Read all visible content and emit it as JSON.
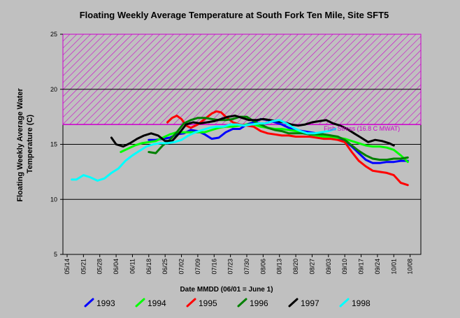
{
  "chart_data": {
    "type": "line",
    "title": "Floating Weekly Average Temperature at South Fork Ten Mile, Site SFT5",
    "xlabel": "Date MMDD (06/01 = June 1)",
    "ylabel": "Floating Weekly Average Water Temperature (C)",
    "ylabel_lines": [
      "Floating Weekly Average Water",
      "Temperature (C)"
    ],
    "ylim": [
      5,
      25
    ],
    "yticks": [
      5,
      10,
      15,
      20,
      25
    ],
    "xlim": [
      0,
      151
    ],
    "xticks": [
      {
        "label": "05/14",
        "x": 0
      },
      {
        "label": "05/21",
        "x": 7
      },
      {
        "label": "05/28",
        "x": 14
      },
      {
        "label": "06/04",
        "x": 21
      },
      {
        "label": "06/11",
        "x": 28
      },
      {
        "label": "06/18",
        "x": 35
      },
      {
        "label": "06/25",
        "x": 42
      },
      {
        "label": "07/02",
        "x": 49
      },
      {
        "label": "07/09",
        "x": 56
      },
      {
        "label": "07/16",
        "x": 63
      },
      {
        "label": "07/23",
        "x": 70
      },
      {
        "label": "07/30",
        "x": 77
      },
      {
        "label": "08/06",
        "x": 84
      },
      {
        "label": "08/13",
        "x": 91
      },
      {
        "label": "08/20",
        "x": 98
      },
      {
        "label": "08/27",
        "x": 105
      },
      {
        "label": "09/03",
        "x": 112
      },
      {
        "label": "09/10",
        "x": 119
      },
      {
        "label": "09/17",
        "x": 126
      },
      {
        "label": "09/24",
        "x": 133
      },
      {
        "label": "10/01",
        "x": 140
      },
      {
        "label": "10/08",
        "x": 147
      }
    ],
    "gridlines_y": [
      10,
      15,
      20
    ],
    "threshold": {
      "label": "Fish Stress (16.8 C MWAT)",
      "value": 16.8,
      "color": "#cc00cc"
    },
    "stress_zone": {
      "from": 16.8,
      "to": 25,
      "color": "#cc00cc"
    },
    "legend_position": "bottom",
    "series": [
      {
        "name": "1993",
        "color": "#0000ff",
        "x": [
          35,
          38,
          41,
          44,
          47,
          50,
          53,
          56,
          59,
          62,
          65,
          68,
          71,
          74,
          77,
          80,
          83,
          86,
          89,
          92,
          95,
          98,
          101,
          104,
          107,
          110,
          113,
          116,
          119,
          122,
          125,
          128,
          131,
          134,
          137,
          140,
          143,
          146
        ],
        "y": [
          15.4,
          15.4,
          15.5,
          15.6,
          15.9,
          16.0,
          16.3,
          16.2,
          15.9,
          15.5,
          15.6,
          16.1,
          16.4,
          16.4,
          16.8,
          17.0,
          17.3,
          17.2,
          17.0,
          16.8,
          16.5,
          16.3,
          16.2,
          16.1,
          16.0,
          15.9,
          15.8,
          15.6,
          15.3,
          14.8,
          14.2,
          13.6,
          13.3,
          13.3,
          13.4,
          13.4,
          13.5,
          13.5
        ]
      },
      {
        "name": "1994",
        "color": "#00ff00",
        "x": [
          23,
          26,
          29,
          32,
          35,
          38,
          41,
          44,
          47,
          50,
          53,
          56,
          59,
          62,
          65,
          68,
          71,
          74,
          77,
          80,
          83,
          86,
          89,
          92,
          95,
          98,
          101,
          104,
          107,
          110,
          113,
          116,
          119,
          122,
          125,
          128,
          131,
          134,
          137,
          140,
          143,
          146
        ],
        "y": [
          14.3,
          14.6,
          14.9,
          15.1,
          15.2,
          15.3,
          15.6,
          15.9,
          16.1,
          16.1,
          16.1,
          16.1,
          16.1,
          16.3,
          16.5,
          16.6,
          16.6,
          16.7,
          16.8,
          16.8,
          16.6,
          16.5,
          16.4,
          16.4,
          16.3,
          16.2,
          16.1,
          15.9,
          15.8,
          15.7,
          15.7,
          15.6,
          15.5,
          15.3,
          15.1,
          14.9,
          14.8,
          14.8,
          14.7,
          14.5,
          14.0,
          13.4
        ]
      },
      {
        "name": "1995",
        "color": "#ff0000",
        "x": [
          43,
          45,
          47,
          49,
          51,
          53,
          56,
          59,
          62,
          64,
          66,
          68,
          71,
          74,
          77,
          80,
          83,
          86,
          89,
          92,
          95,
          98,
          101,
          104,
          107,
          110,
          113,
          116,
          119,
          122,
          125,
          128,
          131,
          134,
          137,
          140,
          143,
          146
        ],
        "y": [
          17.0,
          17.4,
          17.6,
          17.3,
          16.7,
          16.5,
          16.8,
          17.3,
          17.8,
          18.0,
          17.9,
          17.5,
          17.0,
          16.8,
          16.7,
          16.6,
          16.2,
          16.0,
          15.9,
          15.8,
          15.8,
          15.7,
          15.7,
          15.7,
          15.6,
          15.5,
          15.5,
          15.4,
          15.2,
          14.3,
          13.5,
          13.0,
          12.6,
          12.5,
          12.4,
          12.2,
          11.5,
          11.3
        ]
      },
      {
        "name": "1996",
        "color": "#008000",
        "x": [
          35,
          38,
          41,
          44,
          47,
          50,
          53,
          56,
          59,
          62,
          65,
          68,
          71,
          74,
          77,
          80,
          83,
          86,
          89,
          92,
          95,
          98,
          101,
          104,
          107,
          110,
          113,
          116,
          119,
          122,
          125,
          128,
          131,
          134,
          137,
          140,
          143,
          146
        ],
        "y": [
          14.3,
          14.2,
          14.9,
          15.4,
          16.1,
          16.9,
          17.2,
          17.4,
          17.4,
          17.3,
          17.2,
          17.2,
          17.3,
          17.5,
          17.5,
          17.1,
          16.8,
          16.5,
          16.3,
          16.2,
          16.0,
          16.0,
          16.0,
          15.9,
          15.9,
          15.9,
          15.8,
          15.7,
          15.4,
          14.9,
          14.4,
          14.0,
          13.7,
          13.6,
          13.6,
          13.7,
          13.7,
          13.8
        ]
      },
      {
        "name": "1997",
        "color": "#000000",
        "x": [
          19,
          21,
          24,
          27,
          30,
          33,
          36,
          39,
          42,
          45,
          48,
          51,
          54,
          57,
          60,
          63,
          66,
          69,
          72,
          75,
          78,
          81,
          84,
          87,
          90,
          93,
          96,
          99,
          102,
          105,
          108,
          111,
          114,
          117,
          120,
          123,
          126,
          129,
          132,
          135,
          138,
          140
        ],
        "y": [
          15.6,
          15.0,
          14.8,
          15.1,
          15.5,
          15.8,
          16.0,
          15.8,
          15.3,
          15.3,
          16.0,
          16.8,
          17.0,
          16.9,
          17.0,
          17.1,
          17.3,
          17.5,
          17.6,
          17.4,
          17.2,
          17.2,
          17.3,
          17.2,
          17.1,
          17.0,
          16.8,
          16.7,
          16.8,
          17.0,
          17.1,
          17.2,
          16.9,
          16.7,
          16.4,
          16.0,
          15.6,
          15.2,
          15.4,
          15.3,
          15.1,
          14.9
        ]
      },
      {
        "name": "1998",
        "color": "#00ffff",
        "x": [
          2,
          4,
          7,
          10,
          13,
          16,
          19,
          22,
          25,
          28,
          31,
          34,
          37,
          40,
          43,
          46,
          49,
          52,
          55,
          58,
          61,
          64,
          67,
          70,
          73,
          76,
          79,
          82,
          85,
          88,
          91,
          94,
          97,
          100,
          103,
          106,
          109,
          112,
          115
        ],
        "y": [
          11.8,
          11.8,
          12.2,
          12.0,
          11.7,
          11.9,
          12.4,
          12.8,
          13.5,
          14.0,
          14.4,
          14.8,
          15.0,
          15.1,
          15.1,
          15.2,
          15.4,
          15.8,
          16.1,
          16.3,
          16.5,
          16.6,
          16.6,
          16.8,
          16.8,
          16.7,
          16.8,
          16.9,
          16.9,
          17.1,
          17.2,
          16.9,
          16.5,
          16.2,
          16.0,
          16.0,
          16.1,
          16.2,
          16.4
        ]
      }
    ]
  }
}
